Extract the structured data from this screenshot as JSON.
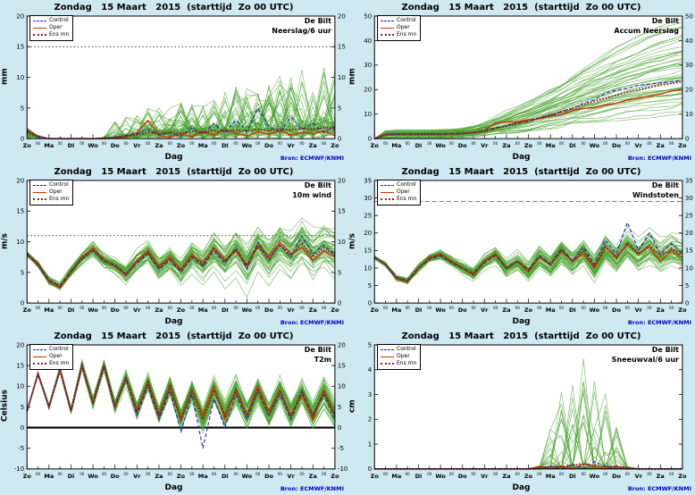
{
  "title": "Zondag   15 Maart   2015  (starttijd  Zo 00 UTC)",
  "legend": {
    "control": "Control",
    "oper": "Oper",
    "ensmn": "Ens mn"
  },
  "labels": {
    "bron": "Bron: ECMWF/KNMI",
    "xlabel": "Dag",
    "minor_tick": "00"
  },
  "colors": {
    "background": "#cfe9f3",
    "control": "#2020cc",
    "oper": "#d43000",
    "ensmean": "#8b1a1a",
    "ensemble": "#45a02b",
    "bron": "#0000cc",
    "hline_black": "#000000",
    "hline_magenta": "#e040c0"
  },
  "day_labels": [
    "Zo",
    "Ma",
    "Di",
    "Wo",
    "Do",
    "Vr",
    "Za",
    "Zo",
    "Ma",
    "Di",
    "Wo",
    "Do",
    "Vr",
    "Za",
    "Zo"
  ],
  "chart_data": [
    {
      "type": "line",
      "location": "De Bilt",
      "variable": "Neerslag/6 uur",
      "ylabel": "mm",
      "ylim": [
        0,
        20
      ],
      "yticks": [
        0,
        5,
        10,
        15,
        20
      ],
      "right_ticks": true,
      "step_days": 0.5,
      "hlines": [
        {
          "y": 15,
          "color": "#000000",
          "width": 0.8,
          "dash": "1.5 2.5"
        }
      ],
      "series": {
        "oper": [
          1.5,
          0.4,
          0,
          0,
          0,
          0,
          0,
          0,
          0.1,
          0.3,
          1.0,
          3.0,
          0.5,
          0.2,
          0.8,
          0.3,
          1.2,
          0.6,
          1.5,
          0.9,
          0.4,
          1.1,
          0.7,
          1.3,
          0.6,
          1.0,
          0.8,
          1.2,
          0.5
        ],
        "control": [
          1.3,
          0.3,
          0,
          0,
          0,
          0,
          0,
          0,
          0.2,
          0.5,
          0.8,
          1.5,
          0.6,
          1.0,
          0.4,
          1.8,
          0.7,
          2.5,
          1.0,
          3.0,
          1.2,
          5.0,
          2.0,
          1.0,
          3.5,
          1.5,
          2.5,
          1.0,
          2.0
        ],
        "ensmean": [
          1.0,
          0.3,
          0,
          0,
          0,
          0,
          0,
          0.1,
          0.2,
          0.4,
          0.6,
          1.0,
          0.8,
          1.0,
          0.9,
          1.2,
          1.0,
          1.3,
          1.1,
          1.4,
          1.2,
          1.5,
          1.3,
          1.6,
          1.4,
          1.7,
          1.5,
          1.8,
          1.6
        ]
      },
      "ensemble": {
        "mode": "precip",
        "count": 50,
        "seed": 11,
        "amp": 6
      }
    },
    {
      "type": "line",
      "location": "De Bilt",
      "variable": "Accum Neerslag",
      "ylabel": "mm",
      "ylim": [
        0,
        50
      ],
      "yticks": [
        0,
        10,
        20,
        30,
        40,
        50
      ],
      "right_ticks": true,
      "step_days": 0.5,
      "hlines": [],
      "series": {
        "oper": [
          0,
          1.8,
          2.0,
          2.0,
          2.0,
          2.0,
          2.0,
          2.0,
          2.1,
          2.3,
          3.3,
          6.3,
          6.8,
          7.0,
          7.8,
          8.1,
          9.3,
          9.9,
          11.4,
          12.3,
          12.7,
          13.8,
          14.5,
          15.8,
          16.4,
          17.4,
          18.2,
          19.4,
          19.9
        ],
        "control": [
          0,
          1.6,
          1.8,
          1.8,
          1.8,
          1.8,
          1.8,
          1.9,
          2.0,
          2.4,
          3.2,
          4.5,
          5.3,
          6.5,
          7.0,
          8.5,
          9.3,
          11.0,
          12.2,
          14.5,
          15.8,
          18.5,
          19.8,
          20.5,
          21.8,
          22.3,
          22.8,
          23.2,
          23.8
        ],
        "ensmean": [
          0,
          1.5,
          1.7,
          1.7,
          1.7,
          1.7,
          1.8,
          1.9,
          2.1,
          2.5,
          3.2,
          4.2,
          5.2,
          6.2,
          7.2,
          8.5,
          9.8,
          11.0,
          12.5,
          14.0,
          15.2,
          16.5,
          17.8,
          19.0,
          20.0,
          21.0,
          21.8,
          22.5,
          23.2
        ]
      },
      "ensemble": {
        "mode": "cumsum",
        "count": 50,
        "seed": 22
      }
    },
    {
      "type": "line",
      "location": "De Bilt",
      "variable": "10m wind",
      "ylabel": "m/s",
      "ylim": [
        0,
        20
      ],
      "yticks": [
        0,
        5,
        10,
        15,
        20
      ],
      "right_ticks": true,
      "step_days": 0.5,
      "hlines": [
        {
          "y": 11,
          "color": "#000000",
          "width": 0.8,
          "dash": "1.5 2.5"
        }
      ],
      "series": {
        "oper": [
          8.0,
          6.5,
          3.5,
          2.5,
          5.0,
          7.5,
          9.0,
          7.0,
          6.0,
          4.5,
          7.0,
          8.5,
          6.0,
          7.5,
          5.5,
          8.0,
          6.5,
          9.0,
          7.0,
          8.5,
          6.0,
          9.5,
          7.5,
          10.0,
          8.0,
          9.0,
          7.0,
          8.5,
          7.5
        ],
        "control": [
          8.0,
          6.2,
          3.8,
          2.8,
          5.2,
          7.2,
          8.5,
          6.8,
          6.2,
          4.8,
          6.5,
          8.0,
          5.5,
          7.0,
          5.0,
          7.5,
          6.0,
          8.5,
          6.5,
          9.0,
          5.5,
          10.0,
          7.0,
          9.5,
          7.5,
          11.0,
          8.0,
          9.5,
          8.0
        ],
        "ensmean": [
          8.0,
          6.3,
          3.6,
          2.7,
          5.1,
          7.3,
          8.7,
          6.9,
          6.1,
          4.7,
          6.8,
          8.2,
          5.8,
          7.2,
          5.3,
          7.8,
          6.3,
          8.8,
          6.8,
          8.8,
          6.2,
          9.2,
          7.2,
          9.5,
          7.8,
          9.8,
          7.5,
          9.0,
          7.8
        ]
      },
      "ensemble": {
        "mode": "band",
        "count": 50,
        "seed": 33,
        "step": 1.2,
        "s0": 0.3,
        "s1": 2.2
      }
    },
    {
      "type": "line",
      "location": "De Bilt",
      "variable": "Windstoten",
      "ylabel": "m/s",
      "ylim": [
        0,
        35
      ],
      "yticks": [
        0,
        5,
        10,
        15,
        20,
        25,
        30,
        35
      ],
      "right_ticks": true,
      "step_days": 0.5,
      "hlines": [
        {
          "y": 29,
          "color": "#e040c0",
          "width": 1,
          "dash": "5 3"
        }
      ],
      "series": {
        "oper": [
          13,
          11,
          7,
          6,
          10,
          13,
          14,
          12,
          10,
          8,
          12,
          14,
          10,
          12,
          9,
          13,
          11,
          15,
          12,
          14,
          10,
          16,
          13,
          17,
          14,
          16,
          12,
          15,
          13
        ],
        "control": [
          13,
          11,
          7.5,
          6.5,
          10,
          12.5,
          13.5,
          11.5,
          10,
          8.5,
          11.5,
          13.5,
          10,
          12,
          9.5,
          13.5,
          11,
          15.5,
          12,
          16,
          11,
          18,
          14,
          23,
          15,
          20,
          14,
          17,
          14
        ],
        "ensmean": [
          13,
          11,
          7.2,
          6.2,
          10,
          12.8,
          13.8,
          11.8,
          10,
          8.3,
          11.8,
          13.8,
          10,
          12,
          9.3,
          13.2,
          10.8,
          15,
          11.8,
          15,
          10.5,
          16,
          13,
          17,
          14,
          16.5,
          13.5,
          15.5,
          14
        ]
      },
      "ensemble": {
        "mode": "band",
        "count": 50,
        "seed": 44,
        "step": 1.3,
        "s0": 0.4,
        "s1": 2.6
      }
    },
    {
      "type": "line",
      "location": "De Bilt",
      "variable": "T2m",
      "ylabel": "Celsius",
      "ylim": [
        -10,
        20
      ],
      "yticks": [
        -10,
        -5,
        0,
        5,
        10,
        15,
        20
      ],
      "right_ticks": true,
      "step_days": 0.5,
      "hlines": [
        {
          "y": 0,
          "color": "#000000",
          "width": 2,
          "dash": ""
        }
      ],
      "series": {
        "oper": [
          4,
          13,
          5,
          14,
          4,
          15,
          6,
          15,
          5,
          12,
          4,
          11,
          3,
          10,
          2,
          9,
          3,
          10,
          2,
          9,
          3,
          10,
          4,
          9,
          3,
          8,
          2,
          9,
          3
        ],
        "control": [
          4,
          13,
          5,
          14,
          4,
          15,
          6,
          15,
          5,
          12,
          3,
          10,
          2,
          9,
          -1,
          8,
          -5,
          7,
          0,
          8,
          2,
          9,
          3,
          8,
          2,
          9,
          3,
          8,
          2
        ],
        "ensmean": [
          4,
          13,
          5,
          14,
          4,
          15,
          6,
          15,
          5,
          12,
          4,
          11,
          3,
          10,
          2,
          9,
          2,
          9,
          3,
          9,
          3,
          9,
          3,
          9,
          3,
          8.5,
          3,
          8.5,
          3
        ]
      },
      "ensemble": {
        "mode": "band",
        "count": 50,
        "seed": 55,
        "step": 1.2,
        "s0": 0.3,
        "s1": 2.6
      }
    },
    {
      "type": "line",
      "location": "De Bilt",
      "variable": "Sneeuwval/6 uur",
      "ylabel": "cm",
      "ylim": [
        0,
        5
      ],
      "yticks": [
        0,
        1,
        2,
        3,
        4,
        5
      ],
      "right_ticks": false,
      "step_days": 0.5,
      "hlines": [],
      "series": {
        "oper": [
          0,
          0,
          0,
          0,
          0,
          0,
          0,
          0,
          0,
          0,
          0,
          0,
          0,
          0,
          0,
          0.1,
          0,
          0.1,
          0,
          0.2,
          0.1,
          0,
          0.1,
          0,
          0,
          0,
          0,
          0,
          0
        ],
        "control": [
          0,
          0,
          0,
          0,
          0,
          0,
          0,
          0,
          0,
          0,
          0,
          0,
          0,
          0,
          0,
          0,
          0.1,
          0,
          0.2,
          0,
          0.3,
          0.1,
          0,
          0,
          0,
          0,
          0,
          0,
          0
        ],
        "ensmean": [
          0,
          0,
          0,
          0,
          0,
          0,
          0,
          0,
          0,
          0,
          0,
          0,
          0,
          0,
          0,
          0.05,
          0.1,
          0.1,
          0.15,
          0.2,
          0.15,
          0.1,
          0.1,
          0.05,
          0,
          0,
          0,
          0,
          0
        ]
      },
      "ensemble": {
        "mode": "spikes",
        "count": 50,
        "seed": 66,
        "amp": 4.5,
        "w0": 15,
        "w1": 23
      }
    }
  ]
}
